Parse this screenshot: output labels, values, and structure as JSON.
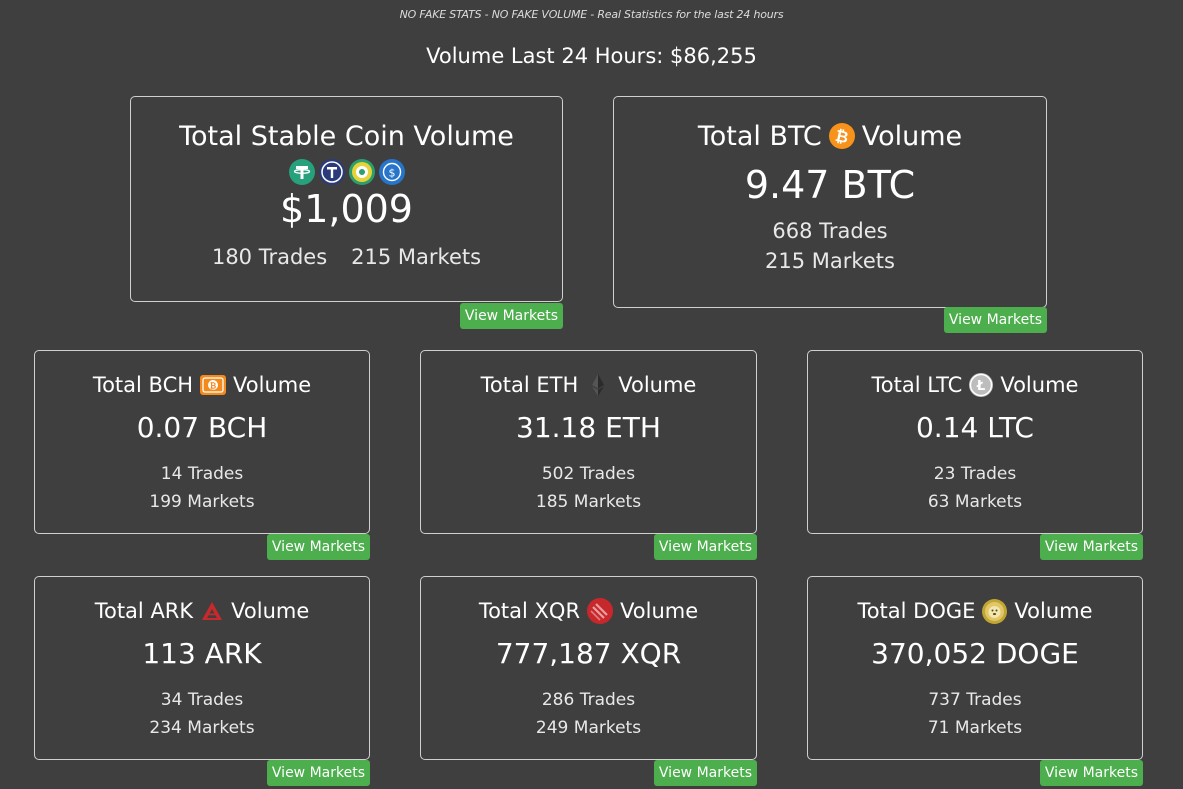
{
  "tagline": "NO FAKE STATS - NO FAKE VOLUME - Real Statistics for the last 24 hours",
  "headline": "Volume Last 24 Hours: $86,255",
  "button_label": "View Markets",
  "colors": {
    "background": "#3f3f3f",
    "button": "#4cae4c",
    "btc": "#f7931a",
    "bch": "#f38a1c",
    "ark": "#c9292c",
    "xqr": "#c8282c",
    "usdt": "#26a17b",
    "usdc": "#2775ca"
  },
  "stable_card": {
    "title": "Total Stable Coin Volume",
    "icons": [
      "tether-icon",
      "trueusd-icon",
      "paxos-icon",
      "usdc-icon"
    ],
    "value": "$1,009",
    "trades": "180 Trades",
    "markets": "215 Markets"
  },
  "btc_card": {
    "title_prefix": "Total BTC",
    "title_suffix": "Volume",
    "icon": "bitcoin-icon",
    "value": "9.47 BTC",
    "trades": "668 Trades",
    "markets": "215 Markets"
  },
  "coin_cards": [
    {
      "id": "bch",
      "title_prefix": "Total BCH",
      "title_suffix": "Volume",
      "icon": "bitcoin-cash-icon",
      "value": "0.07 BCH",
      "trades": "14 Trades",
      "markets": "199 Markets"
    },
    {
      "id": "eth",
      "title_prefix": "Total ETH",
      "title_suffix": "Volume",
      "icon": "ethereum-icon",
      "value": "31.18 ETH",
      "trades": "502 Trades",
      "markets": "185 Markets"
    },
    {
      "id": "ltc",
      "title_prefix": "Total LTC",
      "title_suffix": "Volume",
      "icon": "litecoin-icon",
      "value": "0.14 LTC",
      "trades": "23 Trades",
      "markets": "63 Markets"
    },
    {
      "id": "ark",
      "title_prefix": "Total ARK",
      "title_suffix": "Volume",
      "icon": "ark-icon",
      "value": "113 ARK",
      "trades": "34 Trades",
      "markets": "234 Markets"
    },
    {
      "id": "xqr",
      "title_prefix": "Total XQR",
      "title_suffix": "Volume",
      "icon": "xqr-icon",
      "value": "777,187 XQR",
      "trades": "286 Trades",
      "markets": "249 Markets"
    },
    {
      "id": "doge",
      "title_prefix": "Total DOGE",
      "title_suffix": "Volume",
      "icon": "dogecoin-icon",
      "value": "370,052 DOGE",
      "trades": "737 Trades",
      "markets": "71 Markets"
    }
  ]
}
